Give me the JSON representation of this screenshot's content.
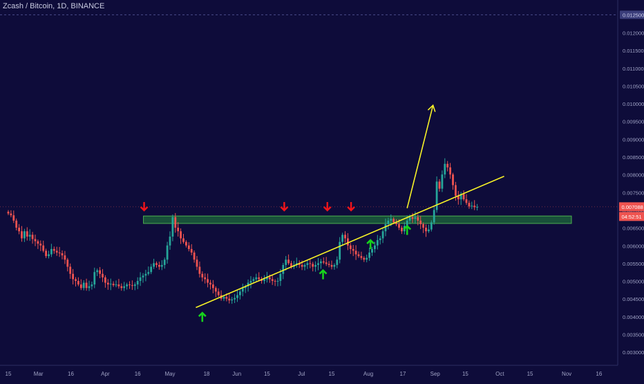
{
  "symbol_title": "Zcash / Bitcoin, 1D, BINANCE",
  "colors": {
    "background": "#0e0c3a",
    "up": "#26a69a",
    "down": "#ef5350",
    "trendline": "#f7f227",
    "zone_fill": "#1b5e3b",
    "zone_border": "#4caf50",
    "arrow_up": "#17d31c",
    "arrow_down": "#f2141a",
    "axis_text": "#9fa2c4",
    "price_label_bg": "#ef5350",
    "time_label_bg": "#ef5350"
  },
  "price_axis": {
    "top_label": "0.012500",
    "ticks": [
      "0.012000",
      "0.011500",
      "0.011000",
      "0.010500",
      "0.010000",
      "0.009500",
      "0.009000",
      "0.008500",
      "0.008000",
      "0.007500",
      "0.007000",
      "0.006500",
      "0.006000",
      "0.005500",
      "0.005000",
      "0.004500",
      "0.004000",
      "0.003500",
      "0.003000"
    ],
    "last_price_label": "0.007088",
    "countdown_label": "04:52:51"
  },
  "time_axis": {
    "labels": [
      "15",
      "Mar",
      "16",
      "Apr",
      "16",
      "May",
      "18",
      "Jun",
      "15",
      "Jul",
      "15",
      "Aug",
      "17",
      "Sep",
      "15",
      "Oct",
      "15",
      "Nov",
      "16"
    ]
  },
  "chart_data": {
    "type": "candlestick",
    "title": "Zcash / Bitcoin, 1D, BINANCE",
    "x_range": [
      "Feb 15",
      "Nov 16"
    ],
    "ylim": [
      0.0027,
      0.0128
    ],
    "resistance_zone": [
      0.00662,
      0.00683
    ],
    "trendline": {
      "from": {
        "date": "May 13",
        "price": 0.00425
      },
      "to": {
        "date": "Oct 3",
        "price": 0.00795
      }
    },
    "projection_arrow": {
      "from": {
        "date": "Aug 19",
        "price": 0.00705
      },
      "to": {
        "date": "Aug 31",
        "price": 0.00995
      }
    },
    "markers_resistance": [
      "Apr 19",
      "Jun 23",
      "Jul 13",
      "Jul 24"
    ],
    "markers_support": [
      "May 16",
      "Jul 11",
      "Aug 2",
      "Aug 19"
    ],
    "closes": [
      0.0069,
      0.00685,
      0.0067,
      0.0065,
      0.0064,
      0.0062,
      0.0064,
      0.00625,
      0.0063,
      0.00618,
      0.00612,
      0.00605,
      0.006,
      0.00585,
      0.0057,
      0.00575,
      0.0059,
      0.00585,
      0.0058,
      0.00578,
      0.00572,
      0.0056,
      0.0054,
      0.0052,
      0.00505,
      0.005,
      0.0049,
      0.0048,
      0.00495,
      0.0048,
      0.00485,
      0.0049,
      0.00525,
      0.0053,
      0.0052,
      0.0051,
      0.00495,
      0.0049,
      0.00492,
      0.00488,
      0.0049,
      0.00485,
      0.0048,
      0.00485,
      0.0049,
      0.00488,
      0.00486,
      0.0049,
      0.005,
      0.0051,
      0.00515,
      0.0052,
      0.00525,
      0.0054,
      0.0055,
      0.00545,
      0.0054,
      0.00545,
      0.0056,
      0.006,
      0.00625,
      0.0068,
      0.0065,
      0.0064,
      0.0062,
      0.0061,
      0.006,
      0.0059,
      0.0058,
      0.0056,
      0.0054,
      0.0052,
      0.0051,
      0.00505,
      0.00495,
      0.0049,
      0.0048,
      0.0047,
      0.0046,
      0.0045,
      0.00455,
      0.0045,
      0.00445,
      0.00448,
      0.00452,
      0.0046,
      0.0047,
      0.0048,
      0.00485,
      0.00495,
      0.005,
      0.00505,
      0.0051,
      0.00505,
      0.005,
      0.00505,
      0.0051,
      0.00505,
      0.005,
      0.00498,
      0.005,
      0.0052,
      0.00545,
      0.0056,
      0.0055,
      0.0054,
      0.00545,
      0.0055,
      0.00545,
      0.0054,
      0.00545,
      0.0055,
      0.00548,
      0.0054,
      0.00545,
      0.0055,
      0.00555,
      0.00552,
      0.00548,
      0.00545,
      0.0054,
      0.00545,
      0.0056,
      0.0061,
      0.0063,
      0.0062,
      0.006,
      0.0059,
      0.00585,
      0.00575,
      0.0057,
      0.00565,
      0.0056,
      0.00565,
      0.0058,
      0.0059,
      0.006,
      0.00615,
      0.0062,
      0.0064,
      0.0066,
      0.0067,
      0.00675,
      0.00665,
      0.0066,
      0.0065,
      0.0064,
      0.00655,
      0.0067,
      0.0068,
      0.00675,
      0.0068,
      0.0067,
      0.0066,
      0.0065,
      0.0064,
      0.00645,
      0.00665,
      0.007,
      0.0078,
      0.0076,
      0.008,
      0.0083,
      0.0082,
      0.008,
      0.0077,
      0.0074,
      0.0073,
      0.00745,
      0.0073,
      0.0072,
      0.0071,
      0.00712,
      0.00708,
      0.007088
    ]
  }
}
